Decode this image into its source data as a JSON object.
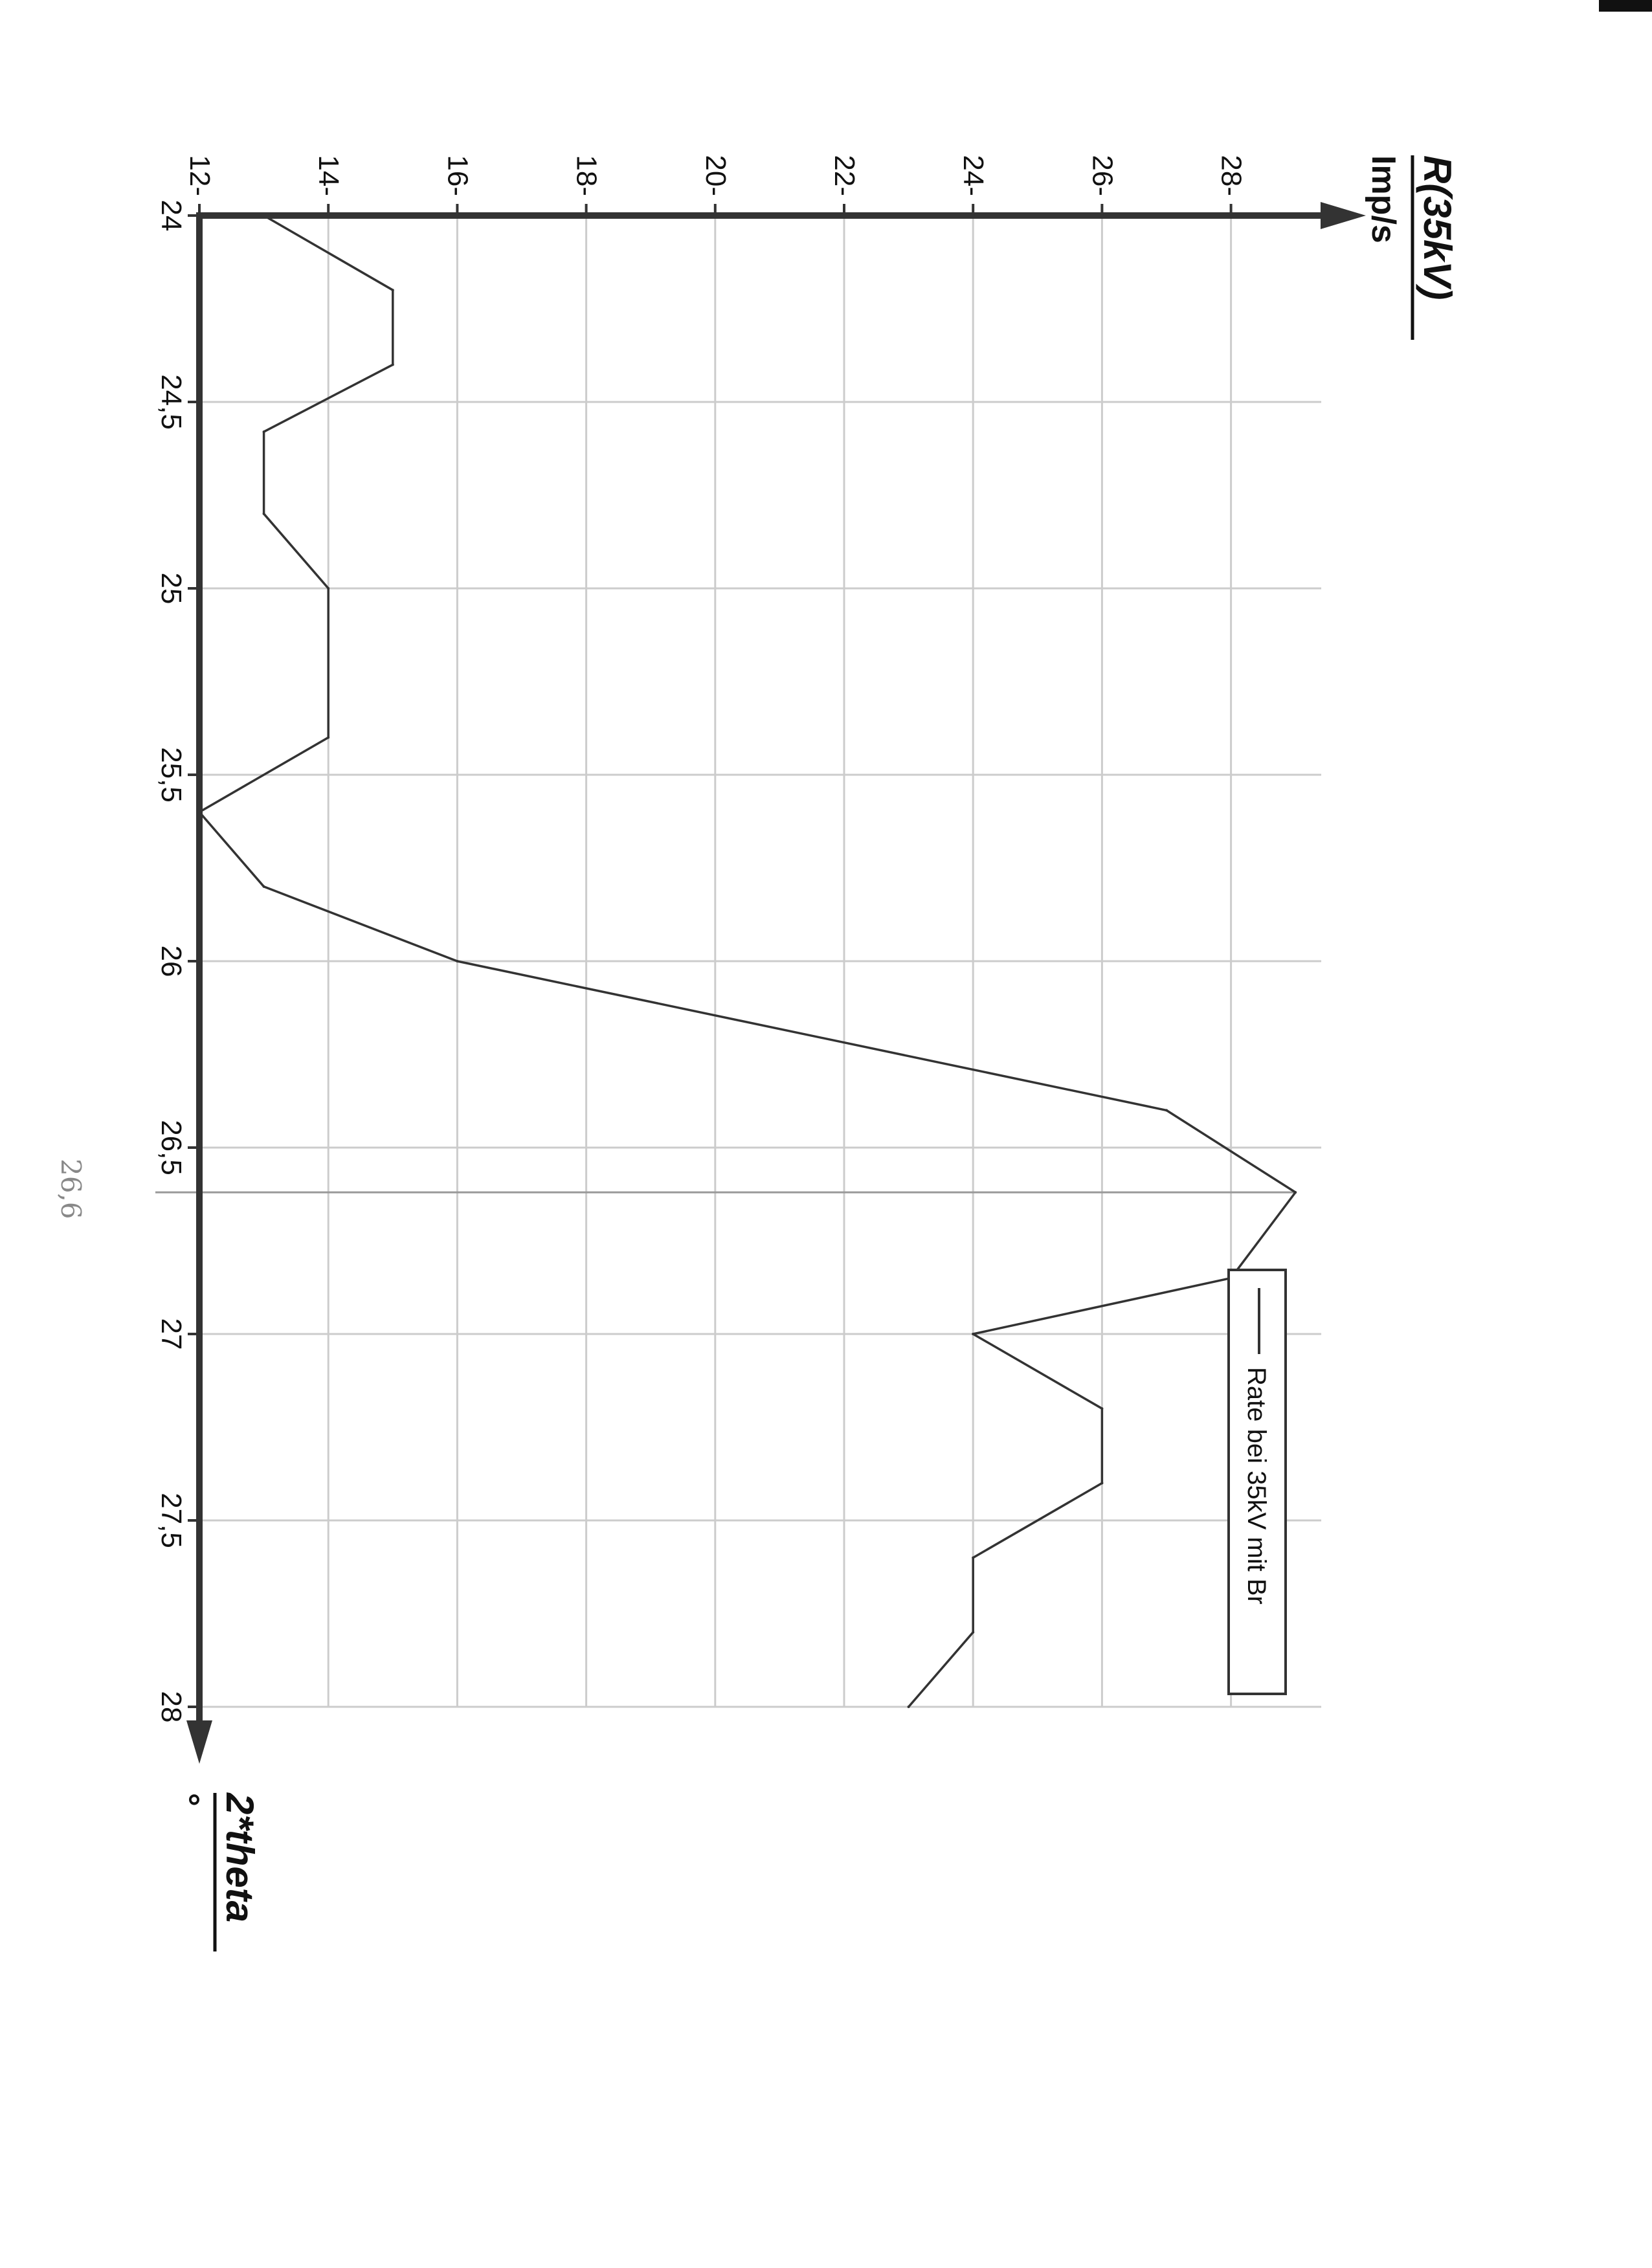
{
  "chart_data": {
    "type": "line",
    "xlabel": "2*theta",
    "xunit": "°",
    "ylabel": "R(35kV)",
    "yunit": "Imp/s",
    "xlim": [
      24,
      28
    ],
    "ylim": [
      12,
      29
    ],
    "x_ticks": [
      "24",
      "24,5",
      "25",
      "25,5",
      "26",
      "26,5",
      "27",
      "27,5",
      "28"
    ],
    "y_ticks": [
      "12",
      "14",
      "16",
      "18",
      "20",
      "22",
      "24",
      "26",
      "28"
    ],
    "legend": "Rate bei 35kV mit Br",
    "marker": {
      "x": 26.62,
      "label": "26,6"
    },
    "series": [
      {
        "name": "Rate bei 35kV mit Br",
        "x": [
          24,
          24.2,
          24.4,
          24.58,
          24.8,
          25,
          25.4,
          25.6,
          25.8,
          26,
          26.4,
          26.62,
          26.85,
          27,
          27.2,
          27.4,
          27.6,
          27.8,
          28
        ],
        "y": [
          13,
          15,
          15,
          13,
          13,
          14,
          14,
          12,
          13,
          16,
          27,
          29,
          28,
          24,
          26,
          26,
          24,
          24,
          23
        ]
      }
    ]
  },
  "colors": {
    "axis": "#333333",
    "grid": "#cccccc",
    "line": "#333333",
    "marker": "#999999"
  }
}
